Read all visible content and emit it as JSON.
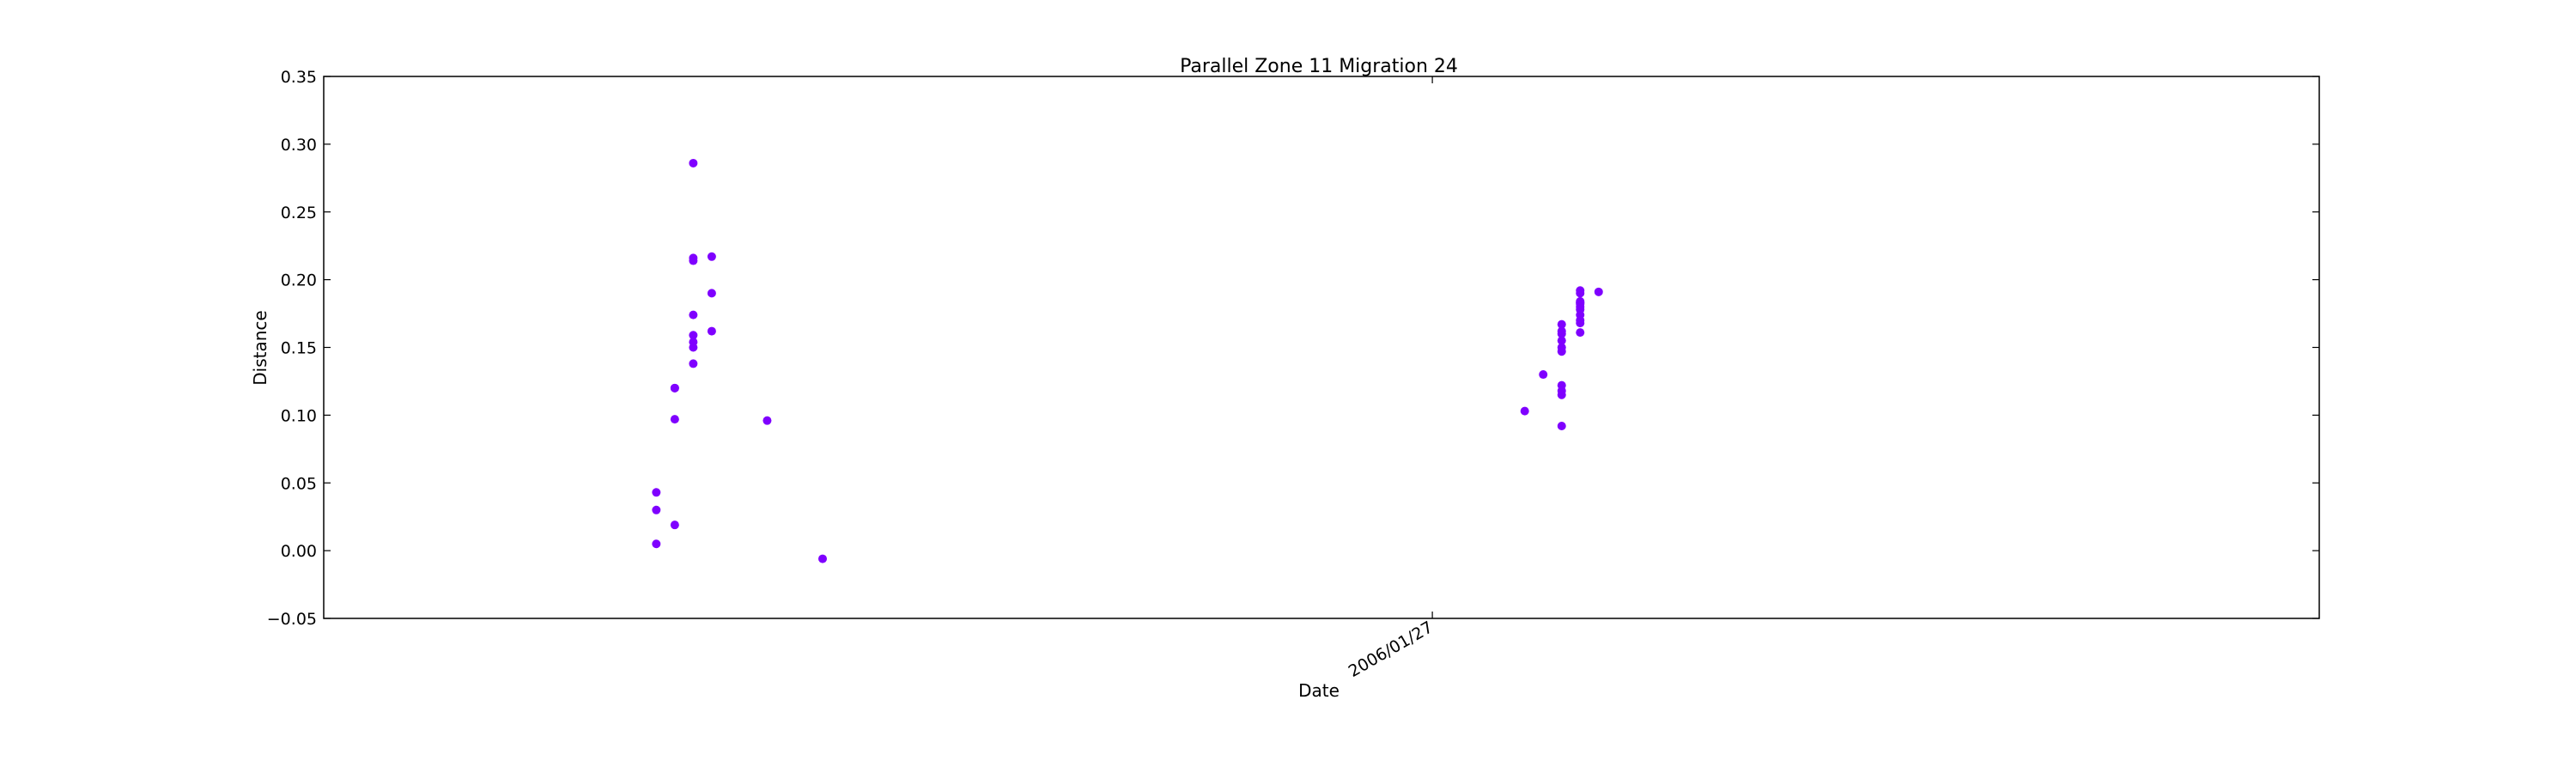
{
  "chart_data": {
    "type": "scatter",
    "title": "Parallel Zone 11 Migration 24",
    "xlabel": "Date",
    "ylabel": "Distance",
    "ylim": [
      -0.05,
      0.35
    ],
    "yticks": [
      -0.05,
      0.0,
      0.05,
      0.1,
      0.15,
      0.2,
      0.25,
      0.3,
      0.35
    ],
    "ytick_labels": [
      "−0.05",
      "0.00",
      "0.05",
      "0.10",
      "0.15",
      "0.20",
      "0.25",
      "0.30",
      "0.35"
    ],
    "xlim": [
      "2005-11-28",
      "2006-03-16"
    ],
    "xticks": [
      "2006-01-27"
    ],
    "xtick_labels": [
      "2006/01/27"
    ],
    "grid": false,
    "marker_color": "#7f00ff",
    "points": [
      {
        "x": "2005-12-16",
        "y": 0.005
      },
      {
        "x": "2005-12-16",
        "y": 0.03
      },
      {
        "x": "2005-12-16",
        "y": 0.043
      },
      {
        "x": "2005-12-17",
        "y": 0.097
      },
      {
        "x": "2005-12-17",
        "y": 0.12
      },
      {
        "x": "2005-12-17",
        "y": 0.12
      },
      {
        "x": "2005-12-17",
        "y": 0.019
      },
      {
        "x": "2005-12-18",
        "y": 0.214
      },
      {
        "x": "2005-12-18",
        "y": 0.286
      },
      {
        "x": "2005-12-18",
        "y": 0.216
      },
      {
        "x": "2005-12-18",
        "y": 0.174
      },
      {
        "x": "2005-12-18",
        "y": 0.138
      },
      {
        "x": "2005-12-18",
        "y": 0.15
      },
      {
        "x": "2005-12-18",
        "y": 0.154
      },
      {
        "x": "2005-12-18",
        "y": 0.159
      },
      {
        "x": "2005-12-19",
        "y": 0.162
      },
      {
        "x": "2005-12-19",
        "y": 0.19
      },
      {
        "x": "2005-12-19",
        "y": 0.217
      },
      {
        "x": "2005-12-22",
        "y": 0.096
      },
      {
        "x": "2005-12-25",
        "y": -0.006
      },
      {
        "x": "2006-02-01",
        "y": 0.103
      },
      {
        "x": "2006-02-02",
        "y": 0.13
      },
      {
        "x": "2006-02-03",
        "y": 0.147
      },
      {
        "x": "2006-02-03",
        "y": 0.162
      },
      {
        "x": "2006-02-03",
        "y": 0.122
      },
      {
        "x": "2006-02-03",
        "y": 0.118
      },
      {
        "x": "2006-02-03",
        "y": 0.115
      },
      {
        "x": "2006-02-03",
        "y": 0.092
      },
      {
        "x": "2006-02-03",
        "y": 0.15
      },
      {
        "x": "2006-02-03",
        "y": 0.16
      },
      {
        "x": "2006-02-03",
        "y": 0.167
      },
      {
        "x": "2006-02-03",
        "y": 0.155
      },
      {
        "x": "2006-02-04",
        "y": 0.182
      },
      {
        "x": "2006-02-04",
        "y": 0.19
      },
      {
        "x": "2006-02-04",
        "y": 0.18
      },
      {
        "x": "2006-02-04",
        "y": 0.184
      },
      {
        "x": "2006-02-04",
        "y": 0.178
      },
      {
        "x": "2006-02-04",
        "y": 0.168
      },
      {
        "x": "2006-02-04",
        "y": 0.192
      },
      {
        "x": "2006-02-04",
        "y": 0.183
      },
      {
        "x": "2006-02-04",
        "y": 0.183
      },
      {
        "x": "2006-02-04",
        "y": 0.17
      },
      {
        "x": "2006-02-04",
        "y": 0.174
      },
      {
        "x": "2006-02-04",
        "y": 0.161
      },
      {
        "x": "2006-02-05",
        "y": 0.191
      }
    ]
  }
}
